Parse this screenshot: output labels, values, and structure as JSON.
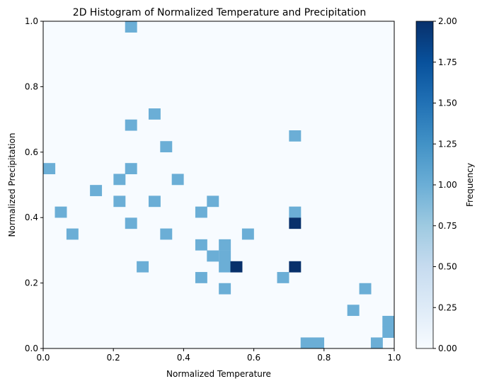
{
  "chart_data": {
    "type": "heatmap",
    "title": "2D Histogram of Normalized Temperature and Precipitation",
    "xlabel": "Normalized Temperature",
    "ylabel": "Normalized Precipitation",
    "xlim": [
      0,
      1
    ],
    "ylim": [
      0,
      1
    ],
    "bins": 30,
    "xticks": [
      "0.0",
      "0.2",
      "0.4",
      "0.6",
      "0.8",
      "1.0"
    ],
    "yticks": [
      "0.0",
      "0.2",
      "0.4",
      "0.6",
      "0.8",
      "1.0"
    ],
    "grid": false,
    "colormap": "Blues",
    "colorbar": {
      "label": "Frequency",
      "range": [
        0,
        2
      ],
      "ticks": [
        "0.00",
        "0.25",
        "0.50",
        "0.75",
        "1.00",
        "1.25",
        "1.50",
        "1.75",
        "2.00"
      ]
    },
    "cells": [
      {
        "x": 0.25,
        "y": 0.983,
        "count": 1
      },
      {
        "x": 0.317,
        "y": 0.717,
        "count": 1
      },
      {
        "x": 0.25,
        "y": 0.683,
        "count": 1
      },
      {
        "x": 0.717,
        "y": 0.65,
        "count": 1
      },
      {
        "x": 0.35,
        "y": 0.617,
        "count": 1
      },
      {
        "x": 0.017,
        "y": 0.55,
        "count": 1
      },
      {
        "x": 0.25,
        "y": 0.55,
        "count": 1
      },
      {
        "x": 0.217,
        "y": 0.517,
        "count": 1
      },
      {
        "x": 0.383,
        "y": 0.517,
        "count": 1
      },
      {
        "x": 0.15,
        "y": 0.483,
        "count": 1
      },
      {
        "x": 0.217,
        "y": 0.45,
        "count": 1
      },
      {
        "x": 0.317,
        "y": 0.45,
        "count": 1
      },
      {
        "x": 0.483,
        "y": 0.45,
        "count": 1
      },
      {
        "x": 0.05,
        "y": 0.417,
        "count": 1
      },
      {
        "x": 0.45,
        "y": 0.417,
        "count": 1
      },
      {
        "x": 0.717,
        "y": 0.417,
        "count": 1
      },
      {
        "x": 0.25,
        "y": 0.383,
        "count": 1
      },
      {
        "x": 0.717,
        "y": 0.383,
        "count": 2
      },
      {
        "x": 0.083,
        "y": 0.35,
        "count": 1
      },
      {
        "x": 0.35,
        "y": 0.35,
        "count": 1
      },
      {
        "x": 0.583,
        "y": 0.35,
        "count": 1
      },
      {
        "x": 0.45,
        "y": 0.317,
        "count": 1
      },
      {
        "x": 0.517,
        "y": 0.317,
        "count": 1
      },
      {
        "x": 0.483,
        "y": 0.283,
        "count": 1
      },
      {
        "x": 0.517,
        "y": 0.283,
        "count": 1
      },
      {
        "x": 0.283,
        "y": 0.25,
        "count": 1
      },
      {
        "x": 0.517,
        "y": 0.25,
        "count": 1
      },
      {
        "x": 0.55,
        "y": 0.25,
        "count": 2
      },
      {
        "x": 0.717,
        "y": 0.25,
        "count": 2
      },
      {
        "x": 0.45,
        "y": 0.217,
        "count": 1
      },
      {
        "x": 0.683,
        "y": 0.217,
        "count": 1
      },
      {
        "x": 0.517,
        "y": 0.183,
        "count": 1
      },
      {
        "x": 0.917,
        "y": 0.183,
        "count": 1
      },
      {
        "x": 0.883,
        "y": 0.117,
        "count": 1
      },
      {
        "x": 0.983,
        "y": 0.083,
        "count": 1
      },
      {
        "x": 0.983,
        "y": 0.05,
        "count": 1
      },
      {
        "x": 0.75,
        "y": 0.017,
        "count": 1
      },
      {
        "x": 0.783,
        "y": 0.017,
        "count": 1
      },
      {
        "x": 0.95,
        "y": 0.017,
        "count": 1
      }
    ],
    "colors": {
      "background": "#f7fbff",
      "c0": "#f7fbff",
      "c025": "#deebf7",
      "c050": "#c6dbef",
      "c075": "#9ecae1",
      "c100": "#6baed6",
      "c125": "#4292c6",
      "c150": "#2171b5",
      "c175": "#08519c",
      "c200": "#08306b"
    }
  }
}
